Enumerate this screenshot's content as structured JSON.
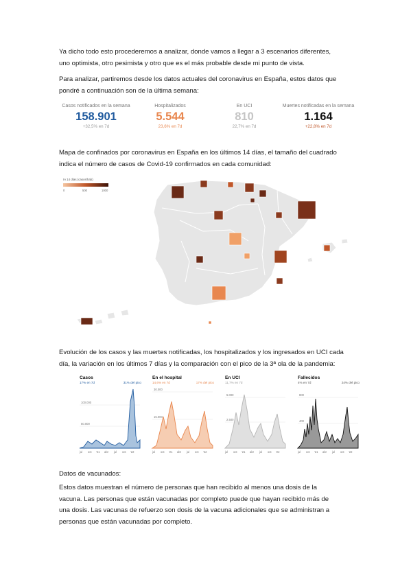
{
  "paragraphs": {
    "intro_1": "Ya dicho todo esto procederemos a analizar, donde vamos a llegar a 3 escenarios diferentes,",
    "intro_2": "uno optimista, otro pesimista y otro que es el más probable desde mi punto de vista.",
    "data_1": "Para analizar, partiremos desde los datos actuales del coronavirus en España, estos datos que",
    "data_2": "pondré a continuación son de la última semana:",
    "map_1": "Mapa de confinados por coronavirus en España en los últimos 14 días, el tamaño del cuadrado",
    "map_2": "indica el número de casos de Covid-19 confirmados en cada comunidad:",
    "evo_1": "Evolución de los casos y las muertes notificadas, los hospitalizados y los ingresados en UCI cada",
    "evo_2": "día, la variación en los últimos 7 días y la comparación con el pico de la 3ª ola de la pandemia:",
    "vac_title": "Datos de vacunados:",
    "vac_1": "Estos datos muestran el número de personas que han recibido al menos una dosis de la",
    "vac_2": "vacuna. Las personas que están vacunadas por completo puede que hayan recibido más de",
    "vac_3": "una dosis. Las vacunas de refuerzo son dosis de la vacuna adicionales que se administran a",
    "vac_4": "personas que están vacunadas por completo."
  },
  "stats": [
    {
      "label": "Casos notificados en la semana",
      "value": "158.901",
      "delta": "+32,5% en 7d",
      "color": "#1f5a9e"
    },
    {
      "label": "Hospitalizados",
      "value": "5.544",
      "delta": "23,6% en 7d",
      "color": "#e8874f"
    },
    {
      "label": "En UCI",
      "value": "810",
      "delta": "22,7% en 7d",
      "color": "#c4c4c4"
    },
    {
      "label": "Muertes notificadas en la semana",
      "value": "1.164",
      "delta": "+22,8% en 7d",
      "color": "#111111"
    }
  ],
  "map": {
    "legend_title": "IA 14 días (casos/hab)",
    "legend_ticks": [
      "0",
      "500",
      "1000"
    ],
    "colors": {
      "land": "#e6e6e6",
      "border": "#ffffff",
      "low": "#f0a067",
      "mid": "#c0572a",
      "high": "#6a2a16"
    }
  },
  "charts": [
    {
      "title": "Casos",
      "left_note": "17% en 7d",
      "right_note": "31% del pico",
      "color": "#1f5a9e",
      "fill": "#a9c3de",
      "yticks": [
        "100.000",
        "50.000"
      ],
      "xticks": [
        "jul",
        "oct",
        "'21",
        "abr",
        "jul",
        "oct",
        "'22"
      ]
    },
    {
      "title": "En el hospital",
      "left_note": "14,6% en 7d",
      "right_note": "17% del pico",
      "color": "#e8874f",
      "fill": "#f6cdb2",
      "yticks": [
        "30.000",
        "15.000"
      ],
      "xticks": [
        "jul",
        "oct",
        "'21",
        "abr",
        "jul",
        "oct",
        "'22"
      ]
    },
    {
      "title": "En UCI",
      "left_note": "11,7% en 7d",
      "right_note": "",
      "color": "#b5b5b5",
      "fill": "#e0e0e0",
      "yticks": [
        "5.000",
        "2.500"
      ],
      "xticks": [
        "jul",
        "oct",
        "'21",
        "abr",
        "jul",
        "oct",
        "'22"
      ]
    },
    {
      "title": "Fallecidos",
      "left_note": "4% en 7d",
      "right_note": "24% del pico",
      "color": "#111111",
      "fill": "#999999",
      "yticks": [
        "800",
        "400"
      ],
      "xticks": [
        "jul",
        "oct",
        "'21",
        "abr",
        "jul",
        "oct",
        "'22"
      ]
    }
  ]
}
